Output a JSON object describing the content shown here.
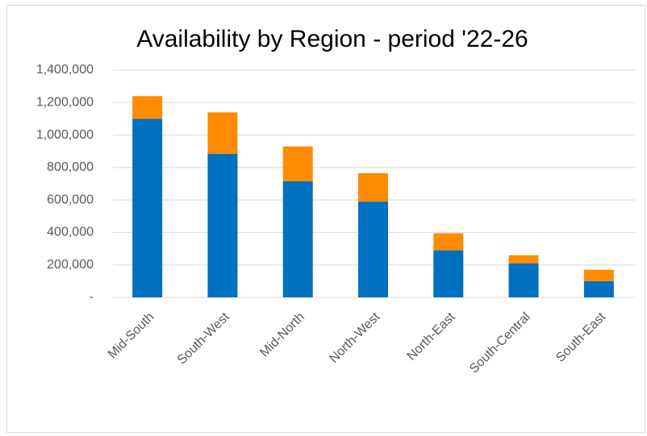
{
  "chart_data": {
    "type": "stacked_bar",
    "title": "Availability by Region - period '22-26",
    "categories": [
      "Mid-South",
      "South-West",
      "Mid-North",
      "North-West",
      "North-East",
      "South-Central",
      "South-East"
    ],
    "series": [
      {
        "color": "#0070c0",
        "values": [
          1100000,
          885000,
          715000,
          590000,
          290000,
          210000,
          100000
        ]
      },
      {
        "color": "#ff8c00",
        "values": [
          140000,
          255000,
          215000,
          175000,
          105000,
          50000,
          70000
        ]
      }
    ],
    "ylim": [
      0,
      1400000
    ],
    "yticks": [
      {
        "value": 0,
        "label": "-"
      },
      {
        "value": 200000,
        "label": "200,000"
      },
      {
        "value": 400000,
        "label": "400,000"
      },
      {
        "value": 600000,
        "label": "600,000"
      },
      {
        "value": 800000,
        "label": "800,000"
      },
      {
        "value": 1000000,
        "label": "1,000,000"
      },
      {
        "value": 1200000,
        "label": "1,200,000"
      },
      {
        "value": 1400000,
        "label": "1,400,000"
      }
    ],
    "grid": true
  }
}
